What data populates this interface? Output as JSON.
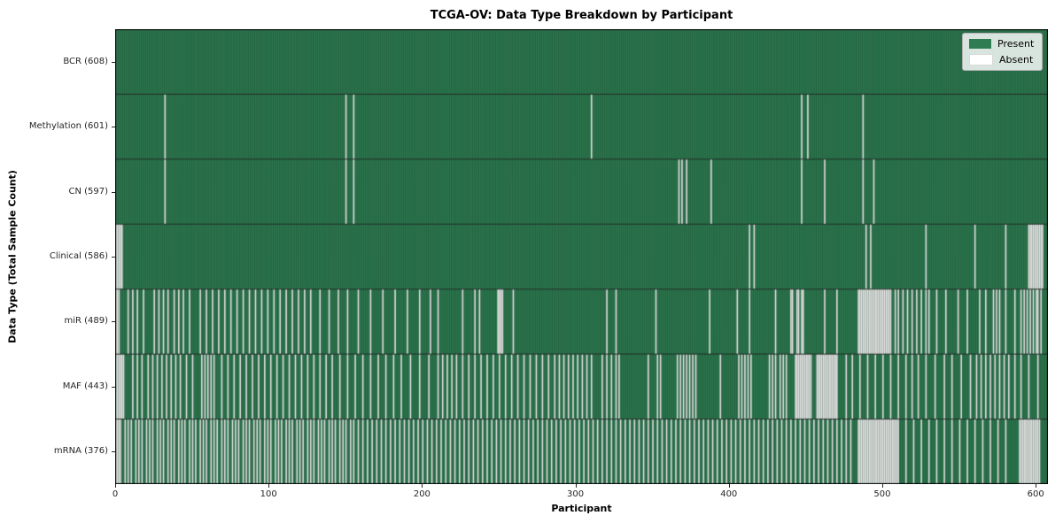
{
  "chart": {
    "title": "TCGA-OV: Data Type Breakdown by Participant",
    "xlabel": "Participant",
    "ylabel": "Data Type (Total Sample Count)",
    "legend": {
      "present_label": "Present",
      "absent_label": "Absent"
    },
    "colors": {
      "present": "#2e7d52",
      "absent": "#f2f2f2",
      "bar_edge": "rgba(0,0,0,0.35)",
      "row_separator": "#111111",
      "plot_border": "#000000",
      "tick_text": "#262626"
    }
  },
  "chart_data": {
    "type": "heatmap",
    "title": "TCGA-OV: Data Type Breakdown by Participant",
    "xlabel": "Participant",
    "ylabel": "Data Type (Total Sample Count)",
    "legend_entries": [
      "Present",
      "Absent"
    ],
    "legend_position": "upper right",
    "total_participants": 608,
    "x_ticks": [
      0,
      100,
      200,
      300,
      400,
      500,
      600
    ],
    "xlim": [
      0,
      608
    ],
    "grid": false,
    "rows": [
      {
        "label": "BCR (608)",
        "name": "BCR",
        "present_count": 608,
        "absent": []
      },
      {
        "label": "Methylation (601)",
        "name": "Methylation",
        "present_count": 601,
        "absent": [
          32,
          150,
          155,
          310,
          447,
          451,
          487
        ]
      },
      {
        "label": "CN (597)",
        "name": "CN",
        "present_count": 597,
        "absent": [
          32,
          150,
          155,
          367,
          369,
          372,
          388,
          447,
          462,
          487,
          494
        ]
      },
      {
        "label": "Clinical (586)",
        "name": "Clinical",
        "present_count": 586,
        "absent": [
          0,
          1,
          2,
          3,
          4,
          413,
          416,
          489,
          492,
          528,
          560,
          580,
          595,
          596,
          597,
          598,
          599,
          600,
          601,
          602,
          603,
          604
        ]
      },
      {
        "label": "miR (489)",
        "name": "miR",
        "present_count": 489,
        "absent": [
          0,
          1,
          2,
          8,
          11,
          14,
          18,
          25,
          28,
          31,
          34,
          38,
          41,
          44,
          48,
          55,
          59,
          63,
          67,
          71,
          75,
          79,
          83,
          87,
          91,
          95,
          99,
          103,
          107,
          111,
          115,
          119,
          123,
          127,
          133,
          139,
          145,
          151,
          158,
          166,
          174,
          182,
          190,
          198,
          205,
          210,
          226,
          234,
          237,
          249,
          250,
          251,
          252,
          259,
          320,
          326,
          352,
          387,
          405,
          413,
          430,
          440,
          441,
          444,
          445,
          447,
          448,
          462,
          470,
          484,
          485,
          486,
          487,
          488,
          489,
          490,
          491,
          492,
          493,
          494,
          495,
          496,
          497,
          498,
          499,
          500,
          501,
          502,
          503,
          504,
          505,
          508,
          510,
          513,
          516,
          519,
          522,
          525,
          528,
          530,
          535,
          541,
          549,
          555,
          563,
          567,
          572,
          574,
          576,
          580,
          586,
          590,
          592,
          594,
          596,
          598,
          600,
          601,
          603
        ]
      },
      {
        "label": "MAF (443)",
        "name": "MAF",
        "present_count": 443,
        "absent": [
          0,
          1,
          2,
          3,
          4,
          5,
          11,
          14,
          17,
          21,
          24,
          27,
          30,
          33,
          36,
          39,
          42,
          46,
          50,
          56,
          58,
          60,
          62,
          64,
          69,
          73,
          77,
          81,
          85,
          89,
          93,
          97,
          101,
          105,
          109,
          113,
          117,
          121,
          125,
          129,
          133,
          137,
          141,
          146,
          151,
          156,
          161,
          166,
          171,
          176,
          181,
          186,
          192,
          198,
          204,
          210,
          213,
          216,
          219,
          222,
          226,
          230,
          234,
          238,
          242,
          246,
          250,
          254,
          258,
          262,
          266,
          270,
          274,
          278,
          282,
          286,
          289,
          292,
          295,
          298,
          301,
          304,
          307,
          310,
          317,
          320,
          323,
          326,
          328,
          347,
          353,
          355,
          366,
          368,
          370,
          372,
          374,
          376,
          378,
          394,
          406,
          408,
          410,
          412,
          414,
          426,
          428,
          430,
          433,
          435,
          437,
          443,
          444,
          445,
          446,
          447,
          448,
          449,
          450,
          451,
          452,
          453,
          457,
          458,
          459,
          460,
          461,
          462,
          463,
          464,
          465,
          466,
          467,
          468,
          469,
          470,
          476,
          480,
          485,
          490,
          495,
          500,
          505,
          510,
          515,
          519,
          523,
          528,
          534,
          540,
          545,
          551,
          557,
          561,
          564,
          567,
          570,
          573,
          576,
          579,
          582,
          586,
          590,
          595,
          601
        ]
      },
      {
        "label": "mRNA (376)",
        "name": "mRNA",
        "present_count": 376,
        "absent": [
          0,
          1,
          2,
          3,
          6,
          8,
          10,
          13,
          15,
          17,
          20,
          22,
          24,
          27,
          29,
          31,
          34,
          36,
          38,
          41,
          43,
          45,
          48,
          50,
          52,
          55,
          57,
          59,
          62,
          64,
          66,
          69,
          71,
          73,
          76,
          78,
          80,
          83,
          85,
          87,
          90,
          92,
          94,
          97,
          99,
          101,
          104,
          106,
          108,
          111,
          113,
          115,
          118,
          120,
          122,
          125,
          127,
          129,
          132,
          134,
          136,
          139,
          141,
          143,
          146,
          148,
          150,
          153,
          155,
          158,
          161,
          164,
          167,
          170,
          173,
          176,
          179,
          182,
          185,
          188,
          191,
          194,
          197,
          200,
          203,
          206,
          209,
          212,
          215,
          218,
          221,
          224,
          227,
          230,
          233,
          236,
          239,
          242,
          245,
          248,
          251,
          254,
          257,
          260,
          263,
          266,
          269,
          272,
          275,
          278,
          281,
          284,
          287,
          290,
          293,
          296,
          299,
          302,
          305,
          308,
          311,
          314,
          317,
          320,
          323,
          326,
          329,
          332,
          335,
          338,
          341,
          344,
          347,
          350,
          353,
          356,
          359,
          362,
          365,
          368,
          371,
          374,
          377,
          380,
          383,
          386,
          389,
          392,
          395,
          398,
          401,
          404,
          407,
          410,
          413,
          416,
          419,
          422,
          425,
          428,
          431,
          434,
          437,
          440,
          443,
          446,
          449,
          452,
          455,
          458,
          461,
          464,
          467,
          470,
          473,
          476,
          479,
          484,
          485,
          486,
          487,
          488,
          489,
          490,
          491,
          492,
          493,
          494,
          495,
          496,
          497,
          498,
          499,
          500,
          501,
          502,
          503,
          504,
          505,
          506,
          507,
          508,
          509,
          510,
          515,
          520,
          525,
          530,
          535,
          540,
          545,
          550,
          555,
          560,
          565,
          570,
          575,
          580,
          589,
          590,
          591,
          592,
          593,
          594,
          595,
          596,
          597,
          598,
          599,
          600,
          601,
          602
        ]
      }
    ]
  }
}
